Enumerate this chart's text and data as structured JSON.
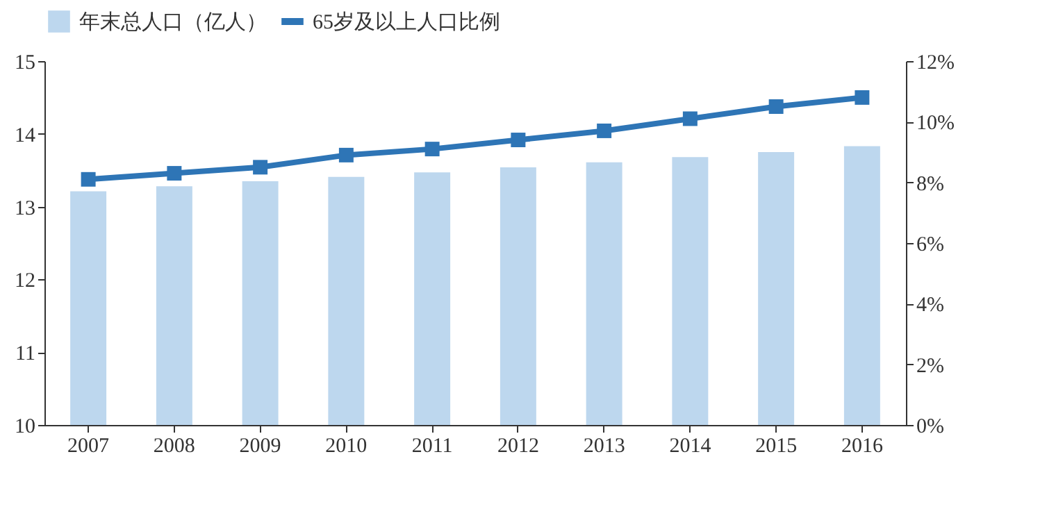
{
  "chart_data": {
    "type": "bar",
    "categories": [
      "2007",
      "2008",
      "2009",
      "2010",
      "2011",
      "2012",
      "2013",
      "2014",
      "2015",
      "2016"
    ],
    "series": [
      {
        "name": "年末总人口（亿人）",
        "color": "#bdd7ee",
        "values": [
          13.21,
          13.28,
          13.35,
          13.41,
          13.47,
          13.54,
          13.61,
          13.68,
          13.75,
          13.83
        ]
      },
      {
        "name": "65岁及以上人口比例",
        "type": "line",
        "axis": "y2",
        "color": "#2e75b6",
        "marker": "square",
        "values": [
          8.1,
          8.3,
          8.5,
          8.9,
          9.1,
          9.4,
          9.7,
          10.1,
          10.5,
          10.8
        ]
      }
    ],
    "ylim": [
      10,
      15
    ],
    "yticks": [
      10,
      11,
      12,
      13,
      14,
      15
    ],
    "y2lim": [
      0,
      12
    ],
    "y2ticks": [
      {
        "value": 0,
        "label": "0%"
      },
      {
        "value": 2,
        "label": "2%"
      },
      {
        "value": 4,
        "label": "4%"
      },
      {
        "value": 6,
        "label": "6%"
      },
      {
        "value": 8,
        "label": "8%"
      },
      {
        "value": 10,
        "label": "10%"
      },
      {
        "value": 12,
        "label": "12%"
      }
    ],
    "legend": "top",
    "grid": false
  }
}
